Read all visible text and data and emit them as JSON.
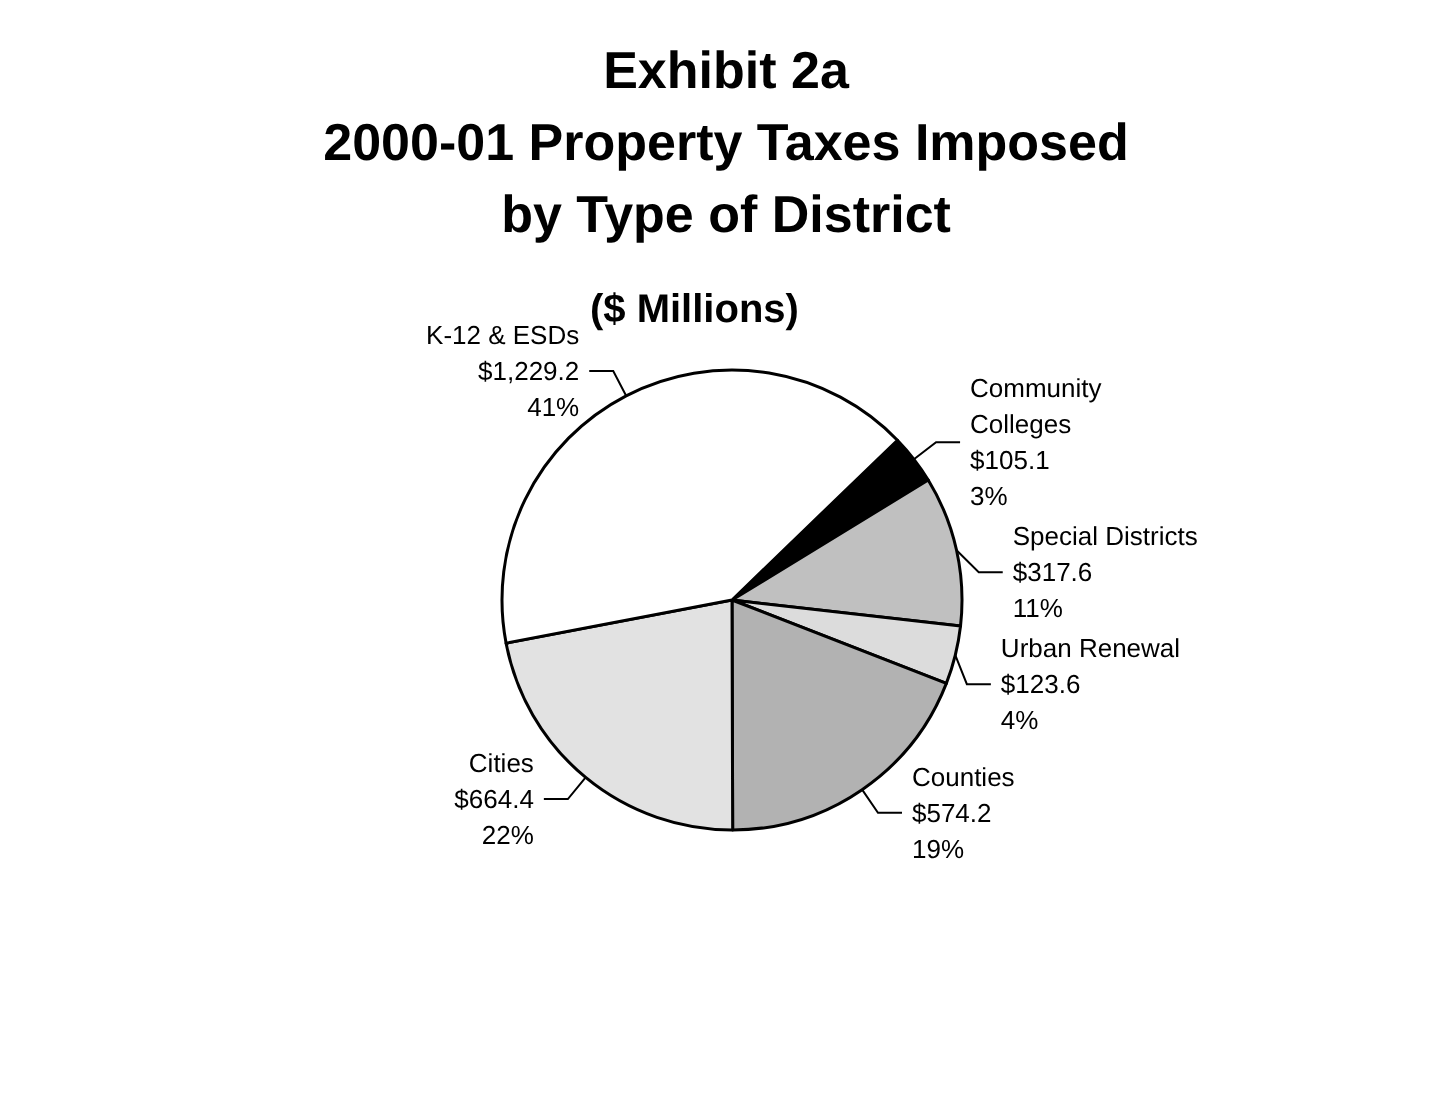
{
  "chart_data": {
    "type": "pie",
    "title": "Exhibit 2a\n2000-01 Property Taxes Imposed\nby Type of District",
    "subtitle": "($ Millions)",
    "categories": [
      "Community Colleges",
      "Special Districts",
      "Urban Renewal",
      "Counties",
      "Cities",
      "K-12 & ESDs"
    ],
    "values": [
      105.1,
      317.6,
      123.6,
      574.2,
      664.4,
      1229.2
    ],
    "value_labels": [
      "$105.1\n3%",
      "$317.6\n11%",
      "$123.6\n4%",
      "$574.2\n19%",
      "$664.4\n22%",
      "$1,229.2\n41%"
    ],
    "colors": [
      "#000000",
      "#c0c0c0",
      "#dcdcdc",
      "#b2b2b2",
      "#e2e2e2",
      "#ffffff"
    ],
    "legend": false
  }
}
